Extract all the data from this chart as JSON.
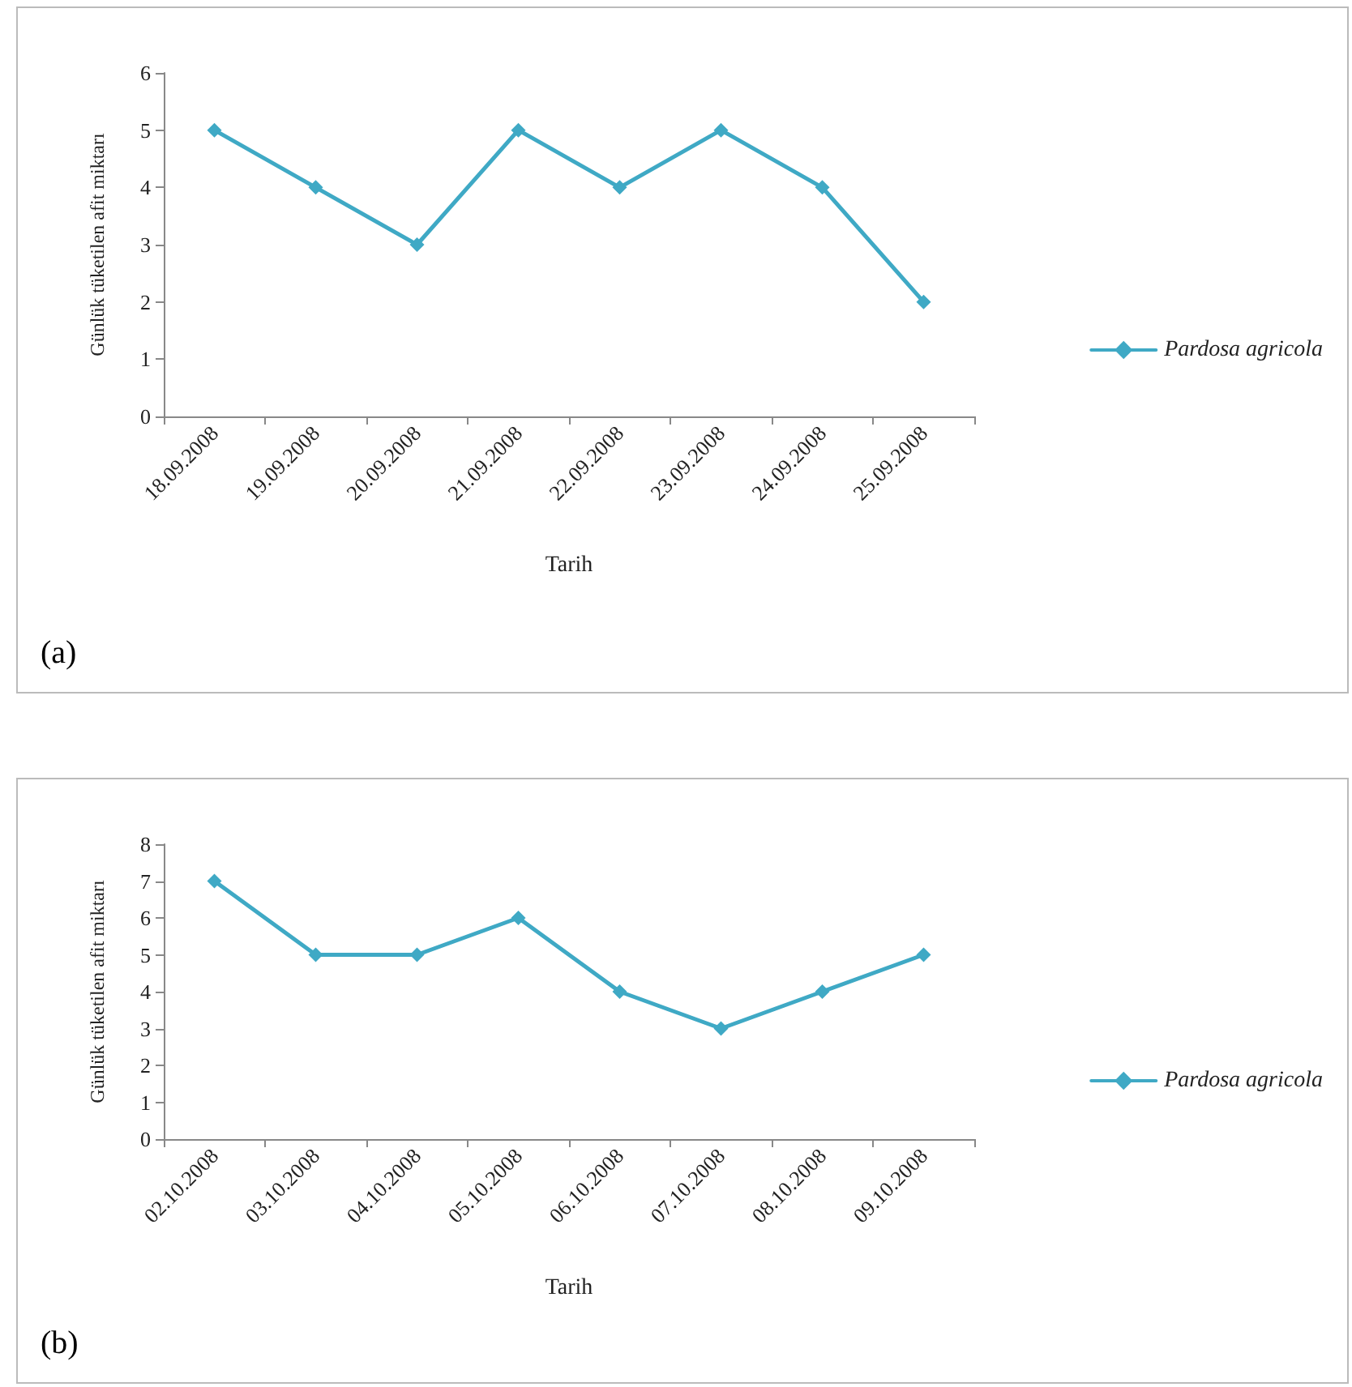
{
  "chart_data": [
    {
      "type": "line",
      "xlabel": "Tarih",
      "ylabel": "Günlük tüketilen afit miktarı",
      "categories": [
        "18.09.2008",
        "19.09.2008",
        "20.09.2008",
        "21.09.2008",
        "22.09.2008",
        "23.09.2008",
        "24.09.2008",
        "25.09.2008"
      ],
      "series": [
        {
          "name": "Pardosa agricola",
          "color": "#3fa9c5",
          "values": [
            5,
            4,
            3,
            5,
            4,
            5,
            4,
            2
          ]
        }
      ],
      "ylim": [
        0,
        6
      ],
      "yticks": [
        0,
        1,
        2,
        3,
        4,
        5,
        6
      ],
      "grid": false,
      "legend": "right",
      "marker": "diamond",
      "line_style": "solid",
      "annotations": [
        "(a)"
      ]
    },
    {
      "type": "line",
      "xlabel": "Tarih",
      "ylabel": "Günlük tüketilen afit miktarı",
      "categories": [
        "02.10.2008",
        "03.10.2008",
        "04.10.2008",
        "05.10.2008",
        "06.10.2008",
        "07.10.2008",
        "08.10.2008",
        "09.10.2008"
      ],
      "series": [
        {
          "name": "Pardosa agricola",
          "color": "#3fa9c5",
          "values": [
            7,
            5,
            5,
            6,
            4,
            3,
            4,
            5
          ]
        }
      ],
      "ylim": [
        0,
        8
      ],
      "yticks": [
        0,
        1,
        2,
        3,
        4,
        5,
        6,
        7,
        8
      ],
      "grid": false,
      "legend": "right",
      "marker": "diamond",
      "line_style": "solid",
      "annotations": [
        "(b)"
      ]
    }
  ]
}
